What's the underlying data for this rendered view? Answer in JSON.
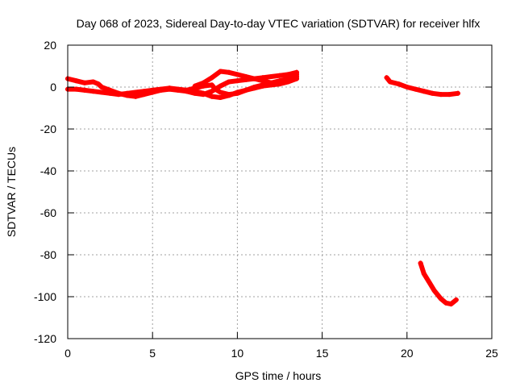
{
  "chart_data": {
    "type": "scatter",
    "title": "Day 068 of 2023, Sidereal Day-to-day VTEC variation (SDTVAR) for receiver hlfx",
    "xlabel": "GPS time / hours",
    "ylabel": "SDTVAR / TECUs",
    "xlim": [
      0,
      25
    ],
    "ylim": [
      -120,
      20
    ],
    "xticks": [
      0,
      5,
      10,
      15,
      20,
      25
    ],
    "yticks": [
      20,
      0,
      -20,
      -40,
      -60,
      -80,
      -100,
      -120
    ],
    "grid": true,
    "series_color": "#ff0000",
    "series": [
      {
        "values": [
          [
            0.0,
            4.0
          ],
          [
            0.5,
            3.0
          ],
          [
            1.0,
            2.0
          ],
          [
            1.5,
            2.5
          ],
          [
            1.8,
            1.5
          ],
          [
            2.0,
            0.0
          ],
          [
            2.5,
            -1.5
          ],
          [
            3.0,
            -3.0
          ],
          [
            3.5,
            -4.0
          ],
          [
            4.0,
            -4.5
          ],
          [
            4.5,
            -3.5
          ],
          [
            5.0,
            -2.5
          ],
          [
            5.5,
            -1.5
          ],
          [
            6.0,
            -1.0
          ],
          [
            6.5,
            -1.5
          ],
          [
            7.0,
            -2.0
          ],
          [
            7.5,
            -3.0
          ],
          [
            8.0,
            -3.5
          ],
          [
            8.5,
            -2.0
          ],
          [
            9.0,
            0.5
          ],
          [
            9.5,
            2.5
          ],
          [
            10.0,
            3.0
          ],
          [
            10.5,
            3.5
          ],
          [
            11.0,
            4.0
          ],
          [
            11.5,
            4.5
          ],
          [
            12.0,
            5.0
          ],
          [
            12.5,
            5.5
          ],
          [
            13.0,
            6.0
          ],
          [
            13.5,
            7.0
          ]
        ]
      },
      {
        "values": [
          [
            0.0,
            -1.0
          ],
          [
            0.5,
            -1.0
          ],
          [
            1.0,
            -1.5
          ],
          [
            1.5,
            -2.0
          ],
          [
            2.0,
            -2.5
          ],
          [
            2.5,
            -3.0
          ],
          [
            3.0,
            -3.5
          ],
          [
            3.5,
            -3.0
          ],
          [
            4.0,
            -2.5
          ],
          [
            4.5,
            -2.0
          ],
          [
            5.0,
            -1.5
          ],
          [
            5.5,
            -1.0
          ],
          [
            6.0,
            -0.5
          ],
          [
            6.5,
            -1.0
          ],
          [
            7.0,
            -1.5
          ],
          [
            7.5,
            -0.5
          ],
          [
            8.0,
            0.5
          ],
          [
            8.5,
            1.0
          ],
          [
            8.7,
            -1.0
          ],
          [
            9.0,
            -2.5
          ],
          [
            9.5,
            -3.5
          ],
          [
            10.0,
            -3.0
          ],
          [
            10.5,
            -1.5
          ],
          [
            11.0,
            -0.5
          ],
          [
            11.5,
            0.5
          ],
          [
            12.0,
            1.0
          ],
          [
            12.5,
            1.5
          ],
          [
            13.0,
            2.5
          ],
          [
            13.5,
            4.0
          ]
        ]
      },
      {
        "values": [
          [
            7.5,
            0.5
          ],
          [
            8.0,
            2.0
          ],
          [
            8.5,
            4.5
          ],
          [
            9.0,
            7.5
          ],
          [
            9.5,
            7.0
          ],
          [
            10.0,
            6.0
          ],
          [
            10.5,
            5.0
          ],
          [
            11.0,
            4.0
          ],
          [
            11.5,
            3.0
          ],
          [
            12.0,
            2.0
          ],
          [
            12.5,
            2.0
          ],
          [
            13.0,
            3.0
          ],
          [
            13.5,
            5.0
          ]
        ]
      },
      {
        "values": [
          [
            7.5,
            -2.0
          ],
          [
            8.0,
            -3.0
          ],
          [
            8.5,
            -4.5
          ],
          [
            9.0,
            -5.0
          ],
          [
            9.5,
            -4.0
          ],
          [
            10.0,
            -2.5
          ],
          [
            10.5,
            -1.5
          ],
          [
            11.0,
            0.0
          ],
          [
            11.5,
            1.0
          ],
          [
            12.0,
            2.0
          ],
          [
            12.5,
            3.0
          ],
          [
            13.0,
            4.0
          ],
          [
            13.5,
            6.0
          ]
        ]
      },
      {
        "values": [
          [
            18.8,
            4.5
          ],
          [
            19.0,
            2.5
          ],
          [
            19.5,
            1.5
          ],
          [
            20.0,
            0.0
          ],
          [
            20.5,
            -1.0
          ],
          [
            21.0,
            -2.0
          ],
          [
            21.5,
            -3.0
          ],
          [
            22.0,
            -3.5
          ],
          [
            22.5,
            -3.5
          ],
          [
            23.0,
            -3.0
          ]
        ]
      },
      {
        "values": [
          [
            20.8,
            -84.0
          ],
          [
            21.0,
            -89.0
          ],
          [
            21.3,
            -93.0
          ],
          [
            21.6,
            -97.0
          ],
          [
            22.0,
            -101.0
          ],
          [
            22.3,
            -103.0
          ],
          [
            22.6,
            -103.5
          ],
          [
            22.9,
            -101.5
          ]
        ]
      }
    ]
  }
}
